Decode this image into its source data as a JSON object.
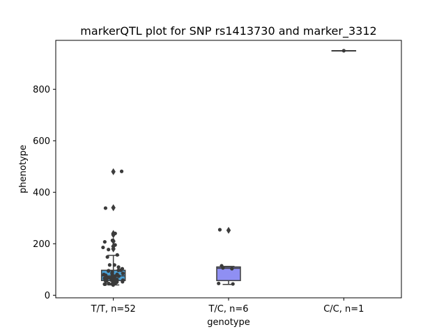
{
  "chart_data": {
    "type": "box",
    "title": "markerQTL plot for SNP rs1413730 and marker_3312",
    "xlabel": "genotype",
    "ylabel": "phenotype",
    "ylim": [
      -10,
      990
    ],
    "yticks": [
      0,
      200,
      400,
      600,
      800
    ],
    "ytick_labels": [
      "0",
      "200",
      "400",
      "600",
      "800"
    ],
    "categories": [
      "T/T, n=52",
      "T/C, n=6",
      "C/C, n=1"
    ],
    "grid": false,
    "groups": [
      {
        "category": "T/T, n=52",
        "color": "#4a9fd4",
        "box": {
          "q1": 57,
          "median": 75,
          "q3": 97,
          "whisker_low": 40,
          "whisker_high": 155
        },
        "outliers": [
          180,
          190,
          210,
          235,
          240,
          340,
          480
        ],
        "points": [
          40,
          42,
          44,
          45,
          46,
          47,
          48,
          49,
          50,
          52,
          53,
          55,
          56,
          57,
          58,
          60,
          61,
          62,
          63,
          65,
          66,
          68,
          70,
          72,
          74,
          75,
          76,
          78,
          80,
          82,
          84,
          86,
          88,
          90,
          93,
          95,
          97,
          100,
          105,
          110,
          115,
          117,
          148,
          158,
          180,
          185,
          195,
          210,
          215,
          240,
          340,
          480
        ]
      },
      {
        "category": "T/C, n=6",
        "color": "#8f8ff3",
        "box": {
          "q1": 57,
          "median": 105,
          "q3": 110,
          "whisker_low": 42,
          "whisker_high": 112
        },
        "outliers": [
          252
        ],
        "points": [
          44,
          45,
          105,
          108,
          112,
          252
        ]
      },
      {
        "category": "C/C, n=1",
        "color": "#4a9fd4",
        "box": {
          "q1": 950,
          "median": 950,
          "q3": 950,
          "whisker_low": 950,
          "whisker_high": 950
        },
        "outliers": [],
        "points": [
          950
        ]
      }
    ]
  }
}
